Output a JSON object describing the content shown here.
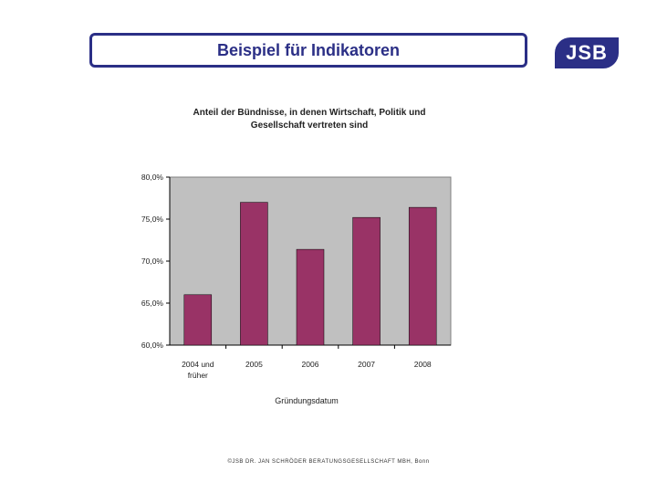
{
  "header": {
    "title": "Beispiel für Indikatoren",
    "logo_text": "JSB"
  },
  "footer": {
    "text": "©JSB DR. JAN SCHRÖDER BERATUNGSGESELLSCHAFT MBH, Bonn"
  },
  "colors": {
    "frame": "#2b2f86",
    "bar": "#993366",
    "plot_bg": "#c0c0c0"
  },
  "chart_data": {
    "type": "bar",
    "title_lines": [
      "Anteil der Bündnisse, in denen Wirtschaft, Politik und",
      "Gesellschaft vertreten sind"
    ],
    "xlabel": "Gründungsdatum",
    "ylabel": "",
    "categories": [
      [
        "2004 und",
        "früher"
      ],
      [
        "2005"
      ],
      [
        "2006"
      ],
      [
        "2007"
      ],
      [
        "2008"
      ]
    ],
    "values": [
      66.0,
      77.0,
      71.4,
      75.2,
      76.4
    ],
    "ylim": [
      60,
      80
    ],
    "yticks": [
      "80,0%",
      "75,0%",
      "70,0%",
      "65,0%",
      "60,0%"
    ],
    "grid": false,
    "legend": "none"
  }
}
